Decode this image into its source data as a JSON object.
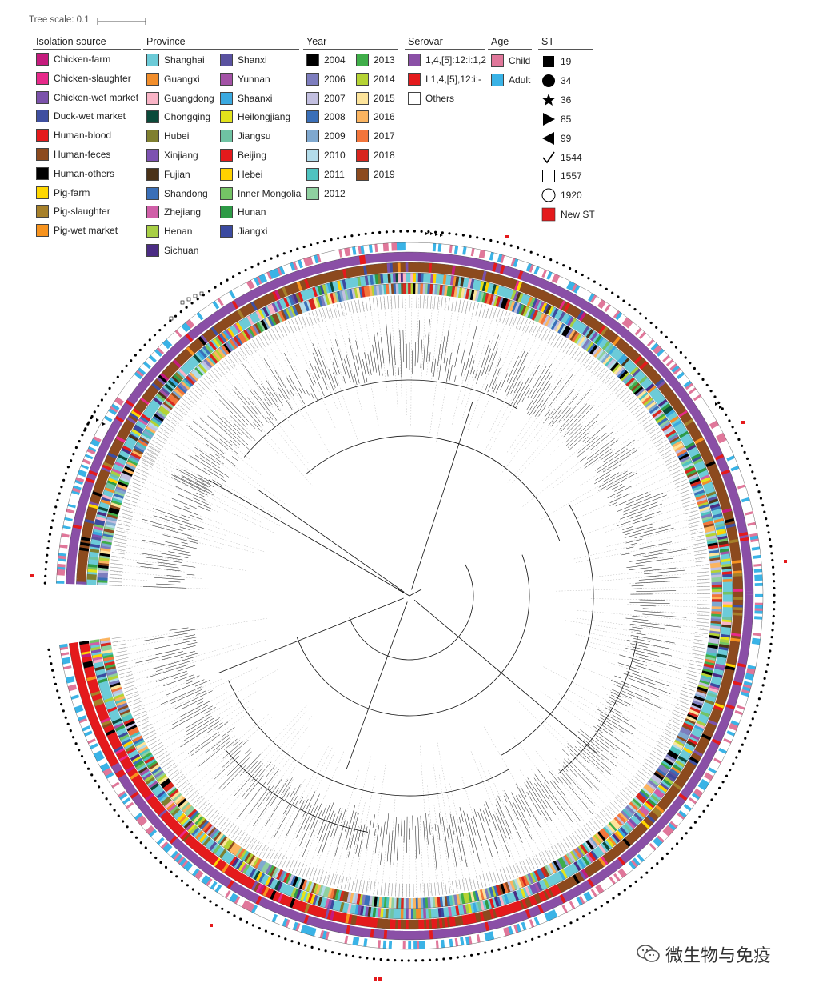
{
  "tree_scale": {
    "label": "Tree scale: 0.1"
  },
  "legends": {
    "isolation_source": {
      "title": "Isolation source",
      "items": [
        {
          "label": "Chicken-farm",
          "color": "#c51b7d"
        },
        {
          "label": "Chicken-slaughter",
          "color": "#e7298a"
        },
        {
          "label": "Chicken-wet market",
          "color": "#7b52ab"
        },
        {
          "label": "Duck-wet market",
          "color": "#3f4fa0"
        },
        {
          "label": "Human-blood",
          "color": "#e41a1c"
        },
        {
          "label": "Human-feces",
          "color": "#8c4a1e"
        },
        {
          "label": "Human-others",
          "color": "#000000"
        },
        {
          "label": "Pig-farm",
          "color": "#ffd700"
        },
        {
          "label": "Pig-slaughter",
          "color": "#a6802a"
        },
        {
          "label": "Pig-wet market",
          "color": "#f7931e"
        }
      ]
    },
    "province": {
      "title": "Province",
      "col1": [
        {
          "label": "Shanghai",
          "color": "#6ccbd8"
        },
        {
          "label": "Guangxi",
          "color": "#f28e2b"
        },
        {
          "label": "Guangdong",
          "color": "#f9b4c6"
        },
        {
          "label": "Chongqing",
          "color": "#0b4a3a"
        },
        {
          "label": "Hubei",
          "color": "#7f7f2f"
        },
        {
          "label": "Xinjiang",
          "color": "#7d52b1"
        },
        {
          "label": "Fujian",
          "color": "#4a3218"
        },
        {
          "label": "Shandong",
          "color": "#3a6fb8"
        },
        {
          "label": "Zhejiang",
          "color": "#d05fa8"
        },
        {
          "label": "Henan",
          "color": "#a8cf45"
        },
        {
          "label": "Sichuan",
          "color": "#4b2c84"
        }
      ],
      "col2": [
        {
          "label": "Shanxi",
          "color": "#5a52a0"
        },
        {
          "label": "Yunnan",
          "color": "#a352a6"
        },
        {
          "label": "Shaanxi",
          "color": "#3aa9e0"
        },
        {
          "label": "Heilongjiang",
          "color": "#e3e31c"
        },
        {
          "label": "Jiangsu",
          "color": "#6fc3a3"
        },
        {
          "label": "Beijing",
          "color": "#e41a1c"
        },
        {
          "label": "Hebei",
          "color": "#ffd200"
        },
        {
          "label": "Inner Mongolia",
          "color": "#74c365"
        },
        {
          "label": "Hunan",
          "color": "#2e9a46"
        },
        {
          "label": "Jiangxi",
          "color": "#3b4aa0"
        }
      ]
    },
    "year": {
      "title": "Year",
      "col1": [
        {
          "label": "2004",
          "color": "#000000"
        },
        {
          "label": "2006",
          "color": "#7d7dbe"
        },
        {
          "label": "2007",
          "color": "#c2bfe0"
        },
        {
          "label": "2008",
          "color": "#3a6fb8"
        },
        {
          "label": "2009",
          "color": "#7fa8cf"
        },
        {
          "label": "2010",
          "color": "#b3dcea"
        },
        {
          "label": "2011",
          "color": "#4fc3c0"
        },
        {
          "label": "2012",
          "color": "#8fd0a0"
        }
      ],
      "col2": [
        {
          "label": "2013",
          "color": "#3fae49"
        },
        {
          "label": "2014",
          "color": "#b5d334"
        },
        {
          "label": "2015",
          "color": "#fde49b"
        },
        {
          "label": "2016",
          "color": "#fbb460"
        },
        {
          "label": "2017",
          "color": "#f2753b"
        },
        {
          "label": "2018",
          "color": "#d7261e"
        },
        {
          "label": "2019",
          "color": "#8c4a1e"
        }
      ]
    },
    "serovar": {
      "title": "Serovar",
      "items": [
        {
          "label": "1,4,[5]:12:i:1,2",
          "color": "#8a4fa6"
        },
        {
          "label": "I 1,4,[5],12:i:-",
          "color": "#e41a1c"
        },
        {
          "label": "Others",
          "color": "#ffffff"
        }
      ]
    },
    "age": {
      "title": "Age",
      "items": [
        {
          "label": "Child",
          "color": "#e0779a"
        },
        {
          "label": "Adult",
          "color": "#3ab3e6"
        }
      ]
    },
    "st": {
      "title": "ST",
      "items": [
        {
          "label": "19",
          "icon": "filled-square-icon"
        },
        {
          "label": "34",
          "icon": "filled-circle-icon"
        },
        {
          "label": "36",
          "icon": "filled-star-icon"
        },
        {
          "label": "85",
          "icon": "right-triangle-icon"
        },
        {
          "label": "99",
          "icon": "left-triangle-icon"
        },
        {
          "label": "1544",
          "icon": "check-icon"
        },
        {
          "label": "1557",
          "icon": "open-square-icon"
        },
        {
          "label": "1920",
          "icon": "open-circle-icon"
        },
        {
          "label": "New ST",
          "icon": "red-square-icon",
          "color": "#e41a1c"
        }
      ]
    }
  },
  "watermark": {
    "text": "微生物与免疫",
    "icon": "wechat-icon"
  }
}
